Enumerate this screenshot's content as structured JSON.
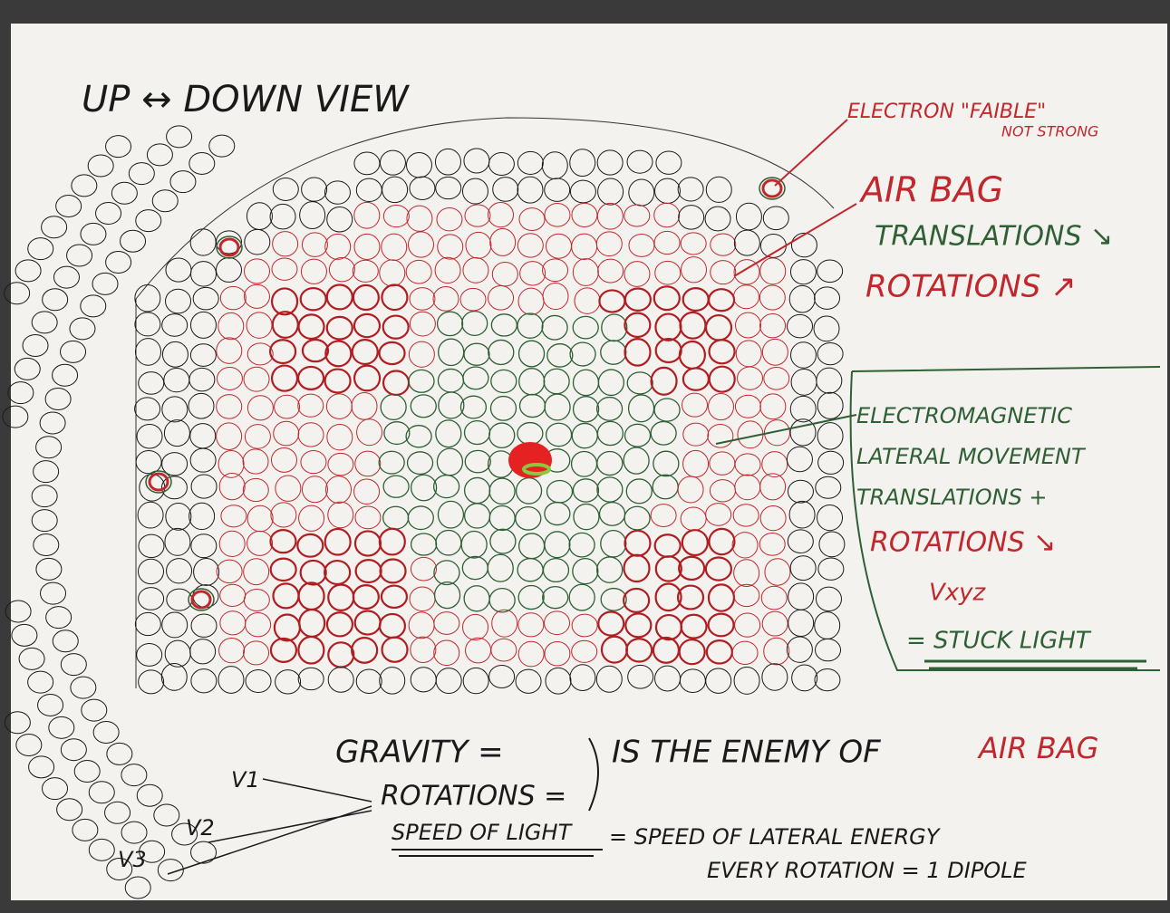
{
  "title": "UP ↔ DOWN VIEW",
  "electron_note": [
    "ELECTRON \"FAIBLE\"",
    "NOT STRONG"
  ],
  "airbag_note": [
    "AIR BAG",
    "TRANSLATIONS ↘",
    "ROTATIONS ↗"
  ],
  "em_note": [
    "ELECTROMAGNETIC",
    "LATERAL MOVEMENT",
    "TRANSLATIONS +",
    "ROTATIONS ↘",
    "Vxyz",
    "= STUCK LIGHT"
  ],
  "velocities": [
    "V1",
    "V2",
    "V3"
  ],
  "bottom": {
    "gravity": "GRAVITY =",
    "rotations": "ROTATIONS =",
    "enemy": "IS THE ENEMY OF",
    "airbag": "AIR BAG",
    "speed": "SPEED OF LIGHT",
    "lateral": "= SPEED OF LATERAL ENERGY",
    "dipole": "EVERY ROTATION = 1 DIPOLE"
  }
}
